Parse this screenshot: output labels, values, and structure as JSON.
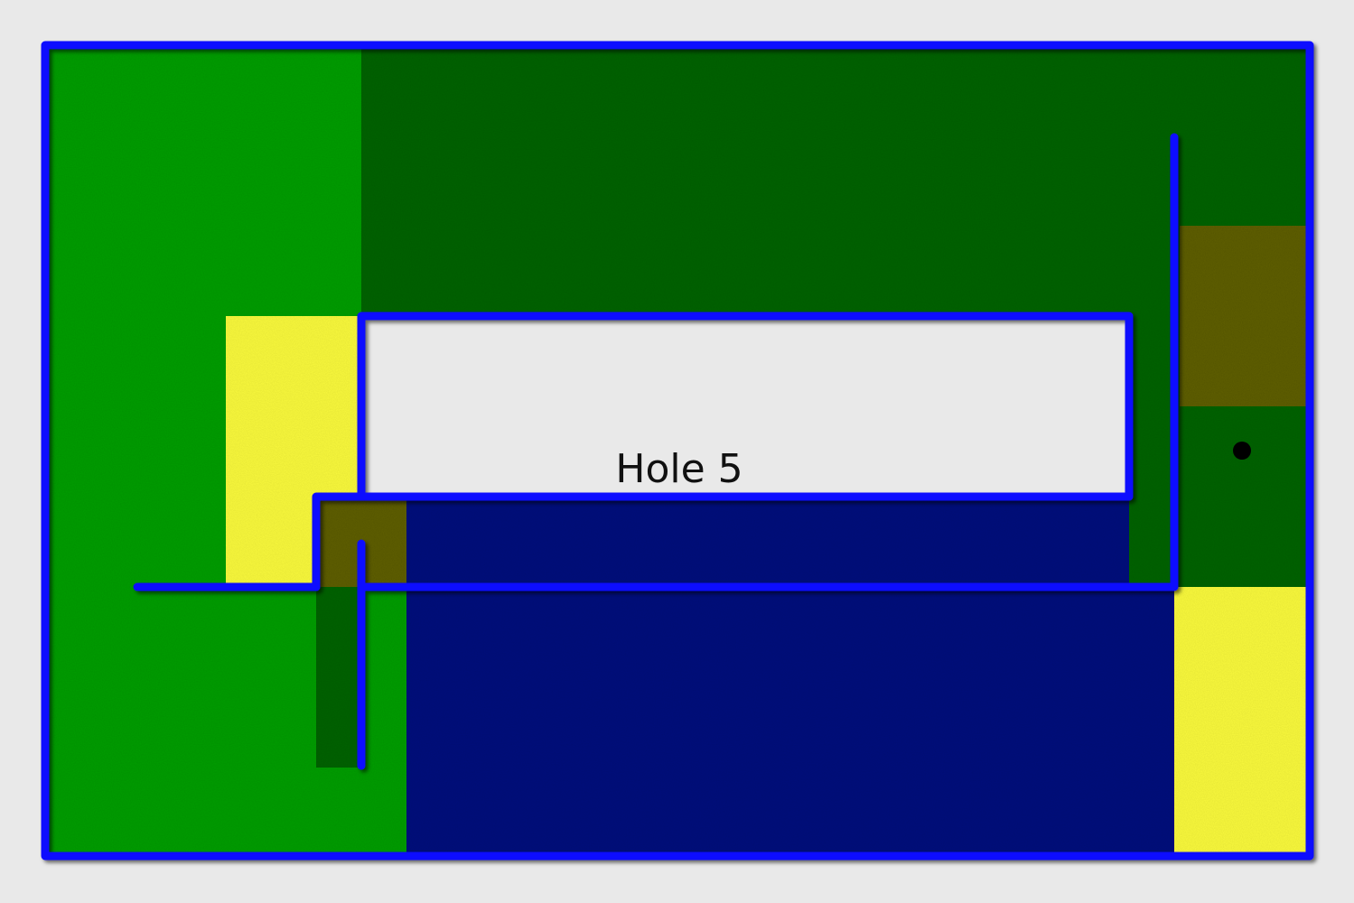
{
  "hole": {
    "label": "Hole 5"
  },
  "colors": {
    "background": "#e9e9e9",
    "fairway": "#009e0b",
    "rough": "#036302",
    "sand": "#fafa3c",
    "water": "#0f147d",
    "mud": "#5e5e0c",
    "wall": "#1010ff",
    "ball": "#000000"
  },
  "terrain_legend": [
    "fairway",
    "rough",
    "sand",
    "water",
    "mud"
  ]
}
